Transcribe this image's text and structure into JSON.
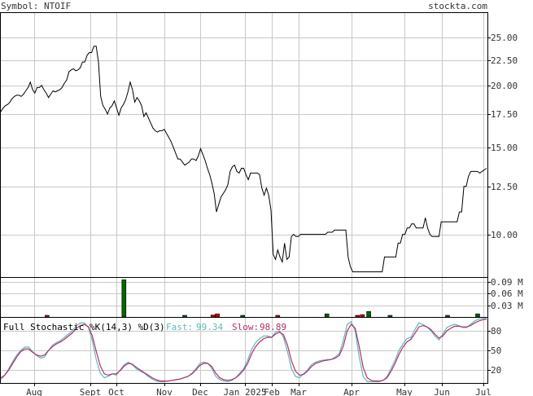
{
  "header": {
    "symbol_label": "Symbol: NTOIF",
    "site": "stockta.com"
  },
  "colors": {
    "price_line": "#000000",
    "volume_up": "#006600",
    "volume_down": "#cc0000",
    "fast_line": "#5fb8b8",
    "slow_line": "#b0306a",
    "fast_text": "#5fb8b8",
    "slow_text": "#b0306a",
    "grid": "#c8c8c8"
  },
  "chart_data": [
    {
      "type": "line",
      "panel": "price",
      "y_scale": "log",
      "ylim": [
        8.2,
        28.0
      ],
      "y_ticks": [
        "25.00",
        "22.50",
        "20.00",
        "17.50",
        "15.00",
        "12.50",
        "10.00"
      ],
      "x_ticks": [
        "Aug",
        "Sept",
        "Oct",
        "Nov",
        "Dec",
        "Jan 2025",
        "Feb",
        "Mar",
        "Apr",
        "May",
        "Jun",
        "Jul"
      ],
      "series": [
        {
          "values": [
            17.7,
            18.0,
            18.2,
            18.3,
            18.5,
            18.8,
            19.0,
            19.1,
            19.1,
            19.0,
            19.2,
            19.5,
            19.8,
            20.3,
            19.6,
            19.3,
            19.8,
            19.8,
            20.0,
            19.6,
            19.3,
            18.9,
            19.2,
            19.5,
            19.4,
            19.5,
            19.6,
            19.8,
            20.2,
            20.5,
            21.3,
            21.5,
            21.6,
            21.4,
            21.5,
            21.7,
            22.3,
            22.3,
            23.0,
            23.3,
            23.3,
            24.0,
            24.0,
            22.3,
            19.0,
            18.2,
            17.9,
            17.5,
            18.0,
            18.2,
            18.6,
            18.0,
            17.4,
            18.0,
            18.3,
            18.7,
            19.4,
            20.3,
            19.6,
            18.5,
            18.9,
            18.6,
            18.2,
            17.3,
            17.6,
            17.2,
            16.8,
            16.4,
            16.2,
            16.1,
            16.2,
            16.2,
            16.3,
            16.0,
            15.7,
            15.4,
            15.0,
            14.6,
            14.2,
            14.2,
            14.0,
            13.8,
            13.9,
            14.0,
            14.2,
            14.2,
            14.1,
            14.4,
            14.9,
            14.5,
            14.1,
            13.6,
            13.2,
            12.7,
            12.1,
            11.1,
            11.5,
            11.9,
            12.1,
            12.3,
            12.6,
            13.4,
            13.7,
            13.8,
            13.4,
            13.3,
            13.6,
            13.6,
            13.2,
            12.9,
            13.3,
            13.3,
            13.3,
            13.3,
            13.2,
            12.4,
            12.0,
            12.4,
            12.0,
            11.2,
            9.1,
            8.9,
            9.3,
            9.0,
            8.8,
            9.6,
            8.9,
            9.0,
            9.9,
            10.0,
            9.9,
            9.9,
            10.0,
            10.0,
            10.0,
            10.0,
            10.0,
            10.0,
            10.0,
            10.0,
            10.0,
            10.0,
            10.0,
            10.0,
            10.1,
            10.1,
            10.1,
            10.2,
            10.2,
            10.2,
            10.2,
            10.2,
            10.2,
            9.0,
            8.6,
            8.4,
            8.4,
            8.4,
            8.4,
            8.4,
            8.4,
            8.4,
            8.4,
            8.4,
            8.4,
            8.4,
            8.4,
            8.4,
            8.4,
            9.0,
            9.0,
            9.0,
            9.0,
            9.0,
            9.0,
            9.6,
            9.6,
            10.0,
            10.0,
            10.3,
            10.3,
            10.5,
            10.5,
            10.3,
            10.3,
            10.3,
            10.3,
            10.8,
            10.3,
            10.0,
            9.9,
            9.9,
            9.9,
            9.9,
            10.6,
            10.6,
            10.6,
            10.6,
            10.6,
            10.6,
            10.6,
            10.6,
            11.1,
            11.1,
            12.5,
            12.5,
            13.1,
            13.4,
            13.4,
            13.4,
            13.4,
            13.3,
            13.4,
            13.5,
            13.6
          ]
        }
      ]
    },
    {
      "type": "bar",
      "panel": "volume",
      "unit": "M",
      "ylim": [
        0,
        0.1
      ],
      "y_ticks": [
        "0.09 M",
        "0.06 M",
        "0.03 M"
      ],
      "bars": [
        {
          "x_frac": 0.095,
          "value": 0.002,
          "color": "down"
        },
        {
          "x_frac": 0.253,
          "value": 0.095,
          "color": "up"
        },
        {
          "x_frac": 0.378,
          "value": 0.003,
          "color": "up"
        },
        {
          "x_frac": 0.436,
          "value": 0.005,
          "color": "down"
        },
        {
          "x_frac": 0.445,
          "value": 0.008,
          "color": "down"
        },
        {
          "x_frac": 0.497,
          "value": 0.002,
          "color": "up"
        },
        {
          "x_frac": 0.569,
          "value": 0.004,
          "color": "down"
        },
        {
          "x_frac": 0.67,
          "value": 0.008,
          "color": "up"
        },
        {
          "x_frac": 0.733,
          "value": 0.004,
          "color": "down"
        },
        {
          "x_frac": 0.743,
          "value": 0.006,
          "color": "down"
        },
        {
          "x_frac": 0.756,
          "value": 0.014,
          "color": "up"
        },
        {
          "x_frac": 0.8,
          "value": 0.002,
          "color": "up"
        },
        {
          "x_frac": 0.918,
          "value": 0.004,
          "color": "up"
        },
        {
          "x_frac": 0.98,
          "value": 0.008,
          "color": "up"
        }
      ]
    },
    {
      "type": "line",
      "panel": "stochastic",
      "title": "Full Stochastic %K(14,3) %D(3)",
      "fast_label": "Fast:",
      "fast_value": "99.34",
      "slow_label": "Slow:",
      "slow_value": "98.89",
      "ylim": [
        0,
        100
      ],
      "y_ticks": [
        "80",
        "50",
        "20"
      ],
      "series": [
        {
          "name": "Fast",
          "values": [
            5,
            12,
            22,
            33,
            43,
            50,
            55,
            55,
            48,
            42,
            38,
            40,
            50,
            58,
            62,
            65,
            70,
            75,
            80,
            88,
            92,
            92,
            85,
            65,
            35,
            15,
            8,
            10,
            14,
            12,
            20,
            28,
            32,
            28,
            22,
            18,
            15,
            10,
            6,
            3,
            2,
            2,
            3,
            4,
            5,
            6,
            8,
            10,
            15,
            22,
            30,
            32,
            30,
            22,
            10,
            5,
            3,
            2,
            4,
            8,
            15,
            22,
            35,
            52,
            62,
            68,
            72,
            72,
            70,
            78,
            80,
            70,
            48,
            22,
            10,
            8,
            14,
            20,
            28,
            32,
            34,
            35,
            36,
            36,
            40,
            45,
            65,
            90,
            94,
            80,
            40,
            10,
            2,
            2,
            2,
            2,
            4,
            10,
            22,
            35,
            50,
            60,
            68,
            70,
            82,
            92,
            90,
            86,
            80,
            72,
            66,
            75,
            85,
            88,
            90,
            88,
            85,
            85,
            90,
            95,
            98,
            99,
            99
          ]
        },
        {
          "name": "Slow",
          "values": [
            8,
            12,
            20,
            30,
            40,
            48,
            52,
            52,
            47,
            43,
            41,
            43,
            50,
            56,
            60,
            63,
            67,
            72,
            77,
            84,
            88,
            90,
            86,
            72,
            48,
            26,
            14,
            12,
            14,
            14,
            19,
            26,
            30,
            29,
            24,
            20,
            16,
            12,
            8,
            5,
            3,
            3,
            3,
            4,
            5,
            6,
            8,
            10,
            14,
            20,
            27,
            30,
            30,
            25,
            15,
            8,
            5,
            4,
            5,
            8,
            13,
            20,
            30,
            45,
            56,
            63,
            68,
            70,
            70,
            75,
            78,
            74,
            58,
            34,
            18,
            12,
            13,
            18,
            25,
            30,
            32,
            34,
            35,
            36,
            38,
            42,
            56,
            80,
            90,
            84,
            56,
            24,
            8,
            4,
            3,
            3,
            4,
            8,
            18,
            30,
            44,
            55,
            63,
            67,
            76,
            86,
            88,
            86,
            82,
            75,
            69,
            72,
            80,
            84,
            87,
            87,
            86,
            86,
            88,
            92,
            95,
            97,
            98
          ]
        }
      ]
    }
  ]
}
